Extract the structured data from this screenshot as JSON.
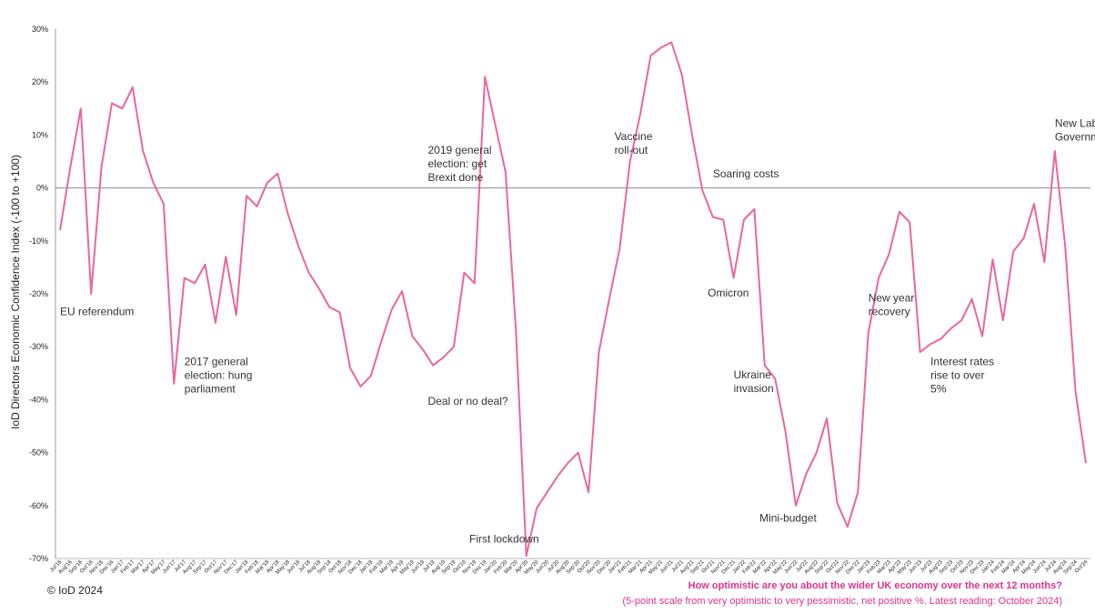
{
  "chart_data": {
    "type": "line",
    "ylabel": "IoD Directors Economic Confidence Index (-100 to +100)",
    "ylim": [
      -70,
      30
    ],
    "yticks": [
      "30%",
      "20%",
      "10%",
      "0%",
      "-10%",
      "-20%",
      "-30%",
      "-40%",
      "-50%",
      "-60%",
      "-70%"
    ],
    "color": "#e8679f",
    "categories": [
      "Jul'16",
      "Aug'16",
      "Sep'16",
      "Oct'16",
      "Nov'16",
      "Dec'16",
      "Jan'17",
      "Feb'17",
      "Mar'17",
      "Apr'17",
      "May'17",
      "Jun'17",
      "Jul'17",
      "Aug'17",
      "Sep'17",
      "Oct'17",
      "Nov'17",
      "Dec'17",
      "Jan'18",
      "Feb'18",
      "Mar'18",
      "Apr'18",
      "May'18",
      "Jun'18",
      "Jul'18",
      "Aug'18",
      "Sep'18",
      "Oct'18",
      "Nov'18",
      "Dec'18",
      "Jan'19",
      "Feb'19",
      "Mar'19",
      "Apr'19",
      "May'19",
      "Jun'19",
      "Jul'19",
      "Aug'19",
      "Sep'19",
      "Oct'19",
      "Nov'19",
      "Dec'19",
      "Jan'20",
      "Feb'20",
      "Mar'20",
      "Apr'20",
      "May'20",
      "Jun'20",
      "Jul'20",
      "Aug'20",
      "Sep'20",
      "Oct'20",
      "Nov'20",
      "Dec'20",
      "Jan'21",
      "Feb'21",
      "Mar'21",
      "Apr'21",
      "May'21",
      "Jun'21",
      "Jul'21",
      "Aug'21",
      "Sep'21",
      "Oct'21",
      "Nov'21",
      "Dec'21",
      "Jan'22",
      "Feb'22",
      "Mar'22",
      "Apr'22",
      "May'22",
      "Jun'22",
      "Jul'22",
      "Aug'22",
      "Sep'22",
      "Oct'22",
      "Nov'22",
      "Dec'22",
      "Jan'23",
      "Feb'23",
      "Mar'23",
      "Apr'23",
      "May'23",
      "Jun'23",
      "Jul'23",
      "Aug'23",
      "Sep'23",
      "Oct'23",
      "Nov'23",
      "Dec'23",
      "Jan'24",
      "Feb'24",
      "Mar'24",
      "Apr'24",
      "May'24",
      "Jun'24",
      "Jul'24",
      "Aug'24",
      "Sep'24",
      "Oct'24"
    ],
    "values": [
      -8,
      4,
      15,
      -20,
      4,
      16,
      15,
      19,
      7,
      1,
      -3,
      -37,
      -17,
      -18,
      -14.5,
      -25.5,
      -13,
      -24,
      -1.5,
      -3.5,
      1,
      2.7,
      -5,
      -11,
      -16,
      -19,
      -22.5,
      -23.5,
      -34,
      -37.5,
      -35.5,
      -29,
      -23,
      -19.5,
      -28,
      -30.5,
      -33.5,
      -32,
      -30,
      -16,
      -18,
      21,
      12,
      3,
      -27,
      -69.5,
      -60.5,
      -57.5,
      -54.5,
      -52,
      -50,
      -57.5,
      -31,
      -21,
      -11.5,
      5,
      14,
      25,
      26.5,
      27.5,
      21.5,
      10,
      -0.5,
      -5.5,
      -6,
      -17,
      -6,
      -4,
      -33.5,
      -36,
      -46,
      -60,
      -54,
      -50,
      -43.5,
      -59.5,
      -64,
      -57.5,
      -27.5,
      -17,
      -12.5,
      -4.5,
      -6.5,
      -31,
      -29.5,
      -28.5,
      -26.5,
      -25,
      -21,
      -28,
      -13.5,
      -25,
      -12,
      -9.5,
      -3,
      -14,
      7,
      -11,
      -38.5,
      -52
    ],
    "annotations": [
      {
        "text": [
          "EU referendum"
        ],
        "i": 0,
        "y": -24
      },
      {
        "text": [
          "2017 general",
          "election: hung",
          "parliament"
        ],
        "i": 12,
        "y": -33.5
      },
      {
        "text": [
          "Deal or no deal?"
        ],
        "i": 35.5,
        "y": -41
      },
      {
        "text": [
          "2019 general",
          "election: get",
          "Brexit done"
        ],
        "i": 35.5,
        "y": 6.5
      },
      {
        "text": [
          "First lockdown"
        ],
        "i": 39.5,
        "y": -67
      },
      {
        "text": [
          "Vaccine",
          "roll-out"
        ],
        "i": 53.5,
        "y": 9
      },
      {
        "text": [
          "Soaring costs"
        ],
        "i": 63,
        "y": 2
      },
      {
        "text": [
          "Omicron"
        ],
        "i": 62.5,
        "y": -20.5
      },
      {
        "text": [
          "Ukraine",
          "invasion"
        ],
        "i": 65,
        "y": -36
      },
      {
        "text": [
          "Mini-budget"
        ],
        "i": 67.5,
        "y": -63
      },
      {
        "text": [
          "New year",
          "recovery"
        ],
        "i": 78,
        "y": -21.5
      },
      {
        "text": [
          "Interest rates",
          "rise to over",
          "5%"
        ],
        "i": 84,
        "y": -33.5
      },
      {
        "text": [
          "New Labour",
          "Government"
        ],
        "i": 96,
        "y": 11.5
      }
    ]
  },
  "footer": {
    "copyright": "© IoD 2024",
    "question": "How optimistic are you about the wider UK economy over the next 12 months?",
    "note": "(5-point scale from very optimistic to very pessimistic, net positive %. Latest reading: October 2024)"
  }
}
